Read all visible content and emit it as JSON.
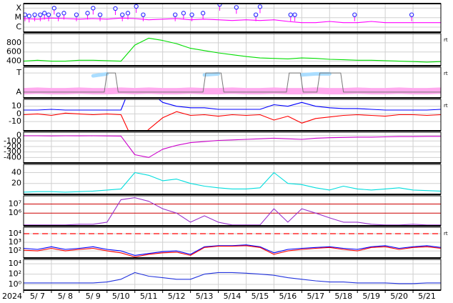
{
  "x_axis": {
    "xlim": [
      7,
      22
    ],
    "label": "2024",
    "xticks": [
      {
        "value": 7,
        "label": "5/ 7"
      },
      {
        "value": 8,
        "label": "5/ 8"
      },
      {
        "value": 9,
        "label": "5/ 9"
      },
      {
        "value": 10,
        "label": "5/10"
      },
      {
        "value": 11,
        "label": "5/11"
      },
      {
        "value": 12,
        "label": "5/12"
      },
      {
        "value": 13,
        "label": "5/13"
      },
      {
        "value": 14,
        "label": "5/14"
      },
      {
        "value": 15,
        "label": "5/15"
      },
      {
        "value": 16,
        "label": "5/16"
      },
      {
        "value": 17,
        "label": "5/17"
      },
      {
        "value": 18,
        "label": "5/18"
      },
      {
        "value": 19,
        "label": "5/19"
      },
      {
        "value": 20,
        "label": "5/20"
      },
      {
        "value": 21,
        "label": "5/21"
      }
    ]
  },
  "chart_data": [
    {
      "type": "line",
      "log": true,
      "ylim": [
        3e-07,
        0.0003
      ],
      "yticks": [
        {
          "value": 0.0001,
          "label": "X"
        },
        {
          "value": 1e-05,
          "label": "M"
        },
        {
          "value": 1e-06,
          "label": "C"
        }
      ],
      "x": [
        7,
        7.5,
        8,
        8.5,
        9,
        9.5,
        10,
        10.5,
        11,
        11.5,
        12,
        12.5,
        13,
        13.5,
        14,
        14.5,
        15,
        15.5,
        16,
        16.5,
        17,
        17.5,
        18,
        18.5,
        19,
        19.5,
        20,
        20.5,
        21,
        21.5,
        22
      ],
      "series": [
        {
          "color": "#ff00ff",
          "values": [
            8e-06,
            7e-06,
            9e-06,
            8e-06,
            7e-06,
            8e-06,
            7e-06,
            9e-06,
            8e-06,
            6e-06,
            7e-06,
            8e-06,
            6e-06,
            7e-06,
            6e-06,
            5e-06,
            6e-06,
            5e-06,
            6e-06,
            4e-06,
            3e-06,
            3e-06,
            4e-06,
            3e-06,
            3e-06,
            4e-06,
            3e-06,
            3e-06,
            3e-06,
            3e-06,
            3e-06
          ]
        },
        {
          "type": "scatter",
          "color": "#3333ff",
          "x": [
            7.05,
            7.2,
            7.4,
            7.6,
            7.75,
            7.9,
            8.1,
            8.25,
            8.45,
            8.9,
            9.3,
            9.5,
            9.75,
            10.3,
            10.55,
            10.75,
            11.05,
            11.3,
            12.45,
            12.75,
            13.05,
            13.45,
            14.05,
            14.65,
            15.35,
            15.5,
            16.6,
            16.75,
            18.9,
            20.95
          ],
          "values": [
            2e-05,
            1.5e-05,
            2e-05,
            2e-05,
            3e-05,
            2e-05,
            0.0001,
            2e-05,
            3e-05,
            2e-05,
            3e-05,
            0.0001,
            2e-05,
            9e-05,
            2e-05,
            3e-05,
            0.00015,
            2e-05,
            2e-05,
            3e-05,
            2e-05,
            3e-05,
            0.00025,
            0.00012,
            2e-05,
            0.00014,
            2e-05,
            2e-05,
            2e-05,
            2e-05
          ]
        }
      ]
    },
    {
      "type": "line",
      "ylim": [
        300,
        1000
      ],
      "yticks": [
        400,
        600,
        800
      ],
      "note": "rt",
      "x": [
        7,
        7.5,
        8,
        8.5,
        9,
        9.5,
        10,
        10.5,
        11,
        11.5,
        12,
        12.5,
        13,
        13.5,
        14,
        14.5,
        15,
        15.5,
        16,
        16.5,
        17,
        17.5,
        18,
        18.5,
        19,
        19.5,
        20,
        20.5,
        21,
        21.5,
        22
      ],
      "series": [
        {
          "color": "#00dd00",
          "values": [
            400,
            420,
            400,
            400,
            420,
            420,
            410,
            400,
            750,
            900,
            850,
            780,
            680,
            630,
            580,
            540,
            500,
            470,
            460,
            450,
            470,
            460,
            440,
            430,
            420,
            420,
            410,
            400,
            390,
            380,
            390
          ]
        }
      ]
    },
    {
      "type": "line",
      "ylim": [
        -1.6,
        1.6
      ],
      "yticks": [
        {
          "value": 1,
          "label": "T"
        },
        {
          "value": -1,
          "label": "A"
        }
      ],
      "note": "rt",
      "x": [
        7,
        7.5,
        8,
        8.5,
        9,
        9.5,
        10,
        10.5,
        11,
        11.5,
        12,
        12.5,
        13,
        13.5,
        14,
        14.5,
        15,
        15.5,
        16,
        16.5,
        17,
        17.5,
        18,
        18.5,
        19,
        19.5,
        20,
        20.5,
        21,
        21.5,
        22
      ],
      "series": [
        {
          "color": "#ffaaee",
          "width": 9,
          "values": [
            -0.9,
            -0.85,
            -0.9,
            -0.9,
            -0.85,
            -0.9,
            -0.9,
            -0.85,
            -0.9,
            -0.85,
            -0.9,
            -0.9,
            -0.85,
            -0.9,
            -0.9,
            -0.85,
            -0.9,
            -0.9,
            -0.85,
            -0.9,
            -0.9,
            -0.85,
            -0.9,
            -0.9,
            -0.85,
            -0.9,
            -0.9,
            -0.85,
            -0.9,
            -0.9,
            -0.85
          ]
        },
        {
          "color": "#aaddff",
          "width": 5,
          "values": [
            null,
            0.8,
            null,
            0.9,
            null,
            0.7,
            0.9,
            null,
            null,
            0.8,
            null,
            0.9,
            null,
            0.8,
            0.9,
            null,
            0.8,
            null,
            0.9,
            null,
            0.8,
            0.9,
            0.9,
            null,
            0.7,
            null,
            0.8,
            null,
            0.9,
            null,
            0.8
          ]
        },
        {
          "color": "#777777",
          "width": 1,
          "x": [
            7,
            9.9,
            10.0,
            10.3,
            10.4,
            13.45,
            13.55,
            14.1,
            14.2,
            16.45,
            16.55,
            16.95,
            17.05,
            17.55,
            17.65,
            18.4,
            18.5,
            22
          ],
          "values": [
            -1,
            -1,
            1,
            1,
            -1,
            -1,
            1,
            1,
            -1,
            -1,
            1,
            1,
            -1,
            -1,
            1,
            1,
            -1,
            -1
          ]
        }
      ]
    },
    {
      "type": "line",
      "ylim": [
        -22,
        19
      ],
      "yticks": [
        -10,
        0,
        10
      ],
      "note": "rt",
      "x": [
        7,
        7.5,
        8,
        8.5,
        9,
        9.5,
        10,
        10.5,
        11,
        11.5,
        12,
        12.5,
        13,
        13.5,
        14,
        14.5,
        15,
        15.5,
        16,
        16.5,
        17,
        17.5,
        18,
        18.5,
        19,
        19.5,
        20,
        20.5,
        21,
        21.5,
        22
      ],
      "series": [
        {
          "color": "#0000ff",
          "values": [
            5,
            5,
            6,
            5,
            5,
            5,
            5,
            5,
            50,
            30,
            15,
            10,
            8,
            8,
            6,
            6,
            6,
            6,
            12,
            10,
            15,
            10,
            8,
            7,
            7,
            6,
            5,
            5,
            5,
            5,
            6
          ]
        },
        {
          "color": "#ff0000",
          "values": [
            -1,
            0,
            -2,
            1,
            0,
            -1,
            0,
            -1,
            -40,
            -20,
            -5,
            3,
            -2,
            -1,
            -3,
            -1,
            -2,
            -1,
            -8,
            -3,
            -12,
            -6,
            -4,
            -2,
            -1,
            -2,
            -3,
            -1,
            -1,
            -2,
            -1
          ]
        }
      ]
    },
    {
      "type": "line",
      "ylim": [
        -500,
        60
      ],
      "yticks": [
        0,
        -100,
        -200,
        -300,
        -400
      ],
      "x": [
        7,
        7.5,
        8,
        8.5,
        9,
        9.5,
        10,
        10.5,
        11,
        11.5,
        12,
        12.5,
        13,
        13.5,
        14,
        14.5,
        15,
        15.5,
        16,
        16.5,
        17,
        17.5,
        18,
        18.5,
        19,
        19.5,
        20,
        20.5,
        21,
        21.5,
        22
      ],
      "series": [
        {
          "color": "#cc00cc",
          "values": [
            -5,
            -5,
            -8,
            -5,
            -6,
            -5,
            -8,
            -10,
            -350,
            -400,
            -250,
            -180,
            -130,
            -110,
            -90,
            -80,
            -70,
            -60,
            -50,
            -60,
            -70,
            -50,
            -40,
            -35,
            -30,
            -30,
            -25,
            -20,
            -20,
            -15,
            -15
          ]
        }
      ]
    },
    {
      "type": "line",
      "ylim": [
        0,
        55
      ],
      "yticks": [
        20,
        40
      ],
      "x": [
        7,
        7.5,
        8,
        8.5,
        9,
        9.5,
        10,
        10.5,
        11,
        11.5,
        12,
        12.5,
        13,
        13.5,
        14,
        14.5,
        15,
        15.5,
        16,
        16.5,
        17,
        17.5,
        18,
        18.5,
        19,
        19.5,
        20,
        20.5,
        21,
        21.5,
        22
      ],
      "series": [
        {
          "color": "#00dddd",
          "values": [
            4,
            5,
            5,
            4,
            5,
            6,
            8,
            10,
            40,
            35,
            25,
            28,
            20,
            15,
            12,
            10,
            10,
            12,
            40,
            20,
            18,
            12,
            8,
            15,
            10,
            8,
            10,
            12,
            8,
            7,
            6
          ]
        }
      ]
    },
    {
      "type": "line",
      "log": true,
      "ylim": [
        40000,
        80000000
      ],
      "grid_color": "#cc0000",
      "yticks": [
        {
          "value": 10000000,
          "label": "10⁷"
        },
        {
          "value": 1000000,
          "label": "10⁶"
        }
      ],
      "x": [
        7,
        7.5,
        8,
        8.5,
        9,
        9.5,
        10,
        10.5,
        11,
        11.5,
        12,
        12.5,
        13,
        13.5,
        14,
        14.5,
        15,
        15.5,
        16,
        16.5,
        17,
        17.5,
        18,
        18.5,
        19,
        19.5,
        20,
        20.5,
        21,
        21.5,
        22
      ],
      "series": [
        {
          "color": "#9933cc",
          "values": [
            50000,
            50000,
            50000,
            50000,
            60000,
            60000,
            100000,
            30000000,
            50000000,
            20000000,
            3000000,
            1000000,
            100000,
            500000,
            100000,
            50000,
            50000,
            50000,
            3000000,
            100000,
            3000000,
            1000000,
            300000,
            100000,
            100000,
            60000,
            50000,
            50000,
            60000,
            50000,
            50000
          ]
        }
      ]
    },
    {
      "type": "line",
      "log": true,
      "ylim": [
        15,
        56000
      ],
      "note": "rt",
      "threshold": {
        "value": 10000,
        "color": "#ff0000"
      },
      "yticks": [
        {
          "value": 10000,
          "label": "10⁴"
        },
        {
          "value": 1000,
          "label": "10³"
        },
        {
          "value": 100,
          "label": "10²"
        }
      ],
      "x": [
        7,
        7.5,
        8,
        8.5,
        9,
        9.5,
        10,
        10.5,
        11,
        11.5,
        12,
        12.5,
        13,
        13.5,
        14,
        14.5,
        15,
        15.5,
        16,
        16.5,
        17,
        17.5,
        18,
        18.5,
        19,
        19.5,
        20,
        20.5,
        21,
        21.5,
        22
      ],
      "series": [
        {
          "color": "#0000ff",
          "values": [
            200,
            150,
            300,
            150,
            200,
            300,
            150,
            100,
            30,
            50,
            80,
            100,
            40,
            300,
            400,
            400,
            500,
            300,
            60,
            150,
            200,
            250,
            300,
            200,
            150,
            300,
            400,
            200,
            300,
            400,
            250
          ]
        },
        {
          "color": "#ff0000",
          "values": [
            120,
            100,
            200,
            100,
            150,
            200,
            100,
            60,
            20,
            40,
            60,
            70,
            30,
            250,
            350,
            350,
            400,
            250,
            40,
            100,
            150,
            200,
            250,
            150,
            100,
            250,
            300,
            150,
            250,
            300,
            200
          ]
        }
      ]
    },
    {
      "type": "line",
      "log": true,
      "ylim": [
        0.08,
        70000
      ],
      "yticks": [
        {
          "value": 10000,
          "label": "10⁴"
        },
        {
          "value": 100,
          "label": "10²"
        },
        {
          "value": 1,
          "label": "10⁰"
        }
      ],
      "x": [
        7,
        7.5,
        8,
        8.5,
        9,
        9.5,
        10,
        10.5,
        11,
        11.5,
        12,
        12.5,
        13,
        13.5,
        14,
        14.5,
        15,
        15.5,
        16,
        16.5,
        17,
        17.5,
        18,
        18.5,
        19,
        19.5,
        20,
        20.5,
        21,
        21.5,
        22
      ],
      "series": [
        {
          "color": "#2233dd",
          "values": [
            2,
            2,
            2,
            2,
            2,
            2,
            3,
            10,
            200,
            40,
            20,
            10,
            10,
            100,
            200,
            200,
            150,
            100,
            60,
            20,
            10,
            5,
            3,
            3,
            2,
            2,
            2,
            1.5,
            1.5,
            2,
            2
          ]
        }
      ]
    }
  ]
}
